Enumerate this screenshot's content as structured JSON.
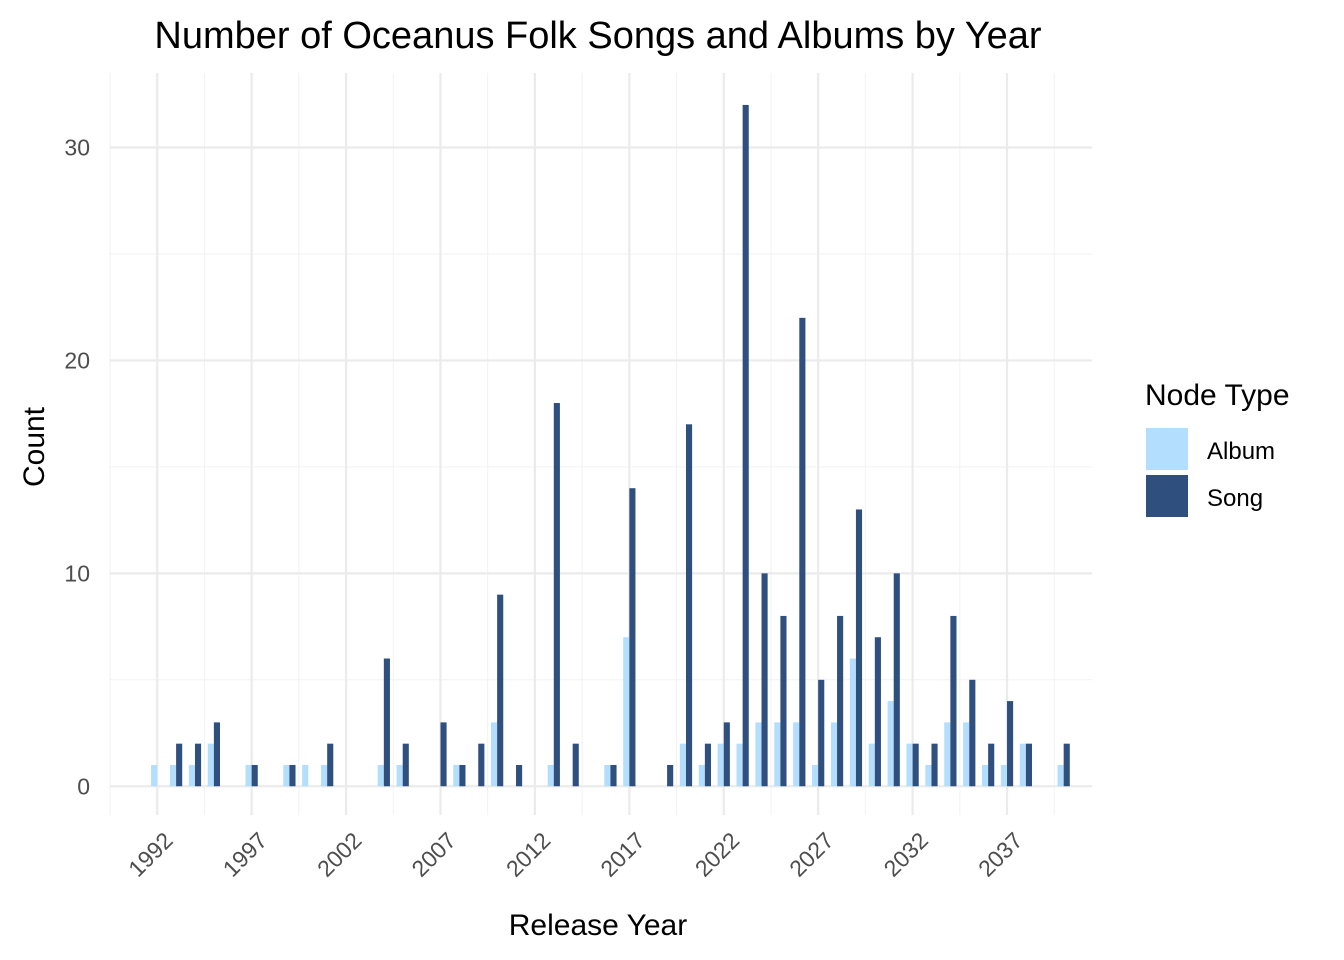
{
  "chart_data": {
    "type": "bar",
    "title": "Number of Oceanus Folk Songs and Albums by Year",
    "xlabel": "Release Year",
    "ylabel": "Count",
    "xlim": [
      1989.5,
      2041.5
    ],
    "ylim": [
      -1.35,
      33.5
    ],
    "x_ticks": [
      1992,
      1997,
      2002,
      2007,
      2012,
      2017,
      2022,
      2027,
      2032,
      2037
    ],
    "y_ticks": [
      0,
      10,
      20,
      30
    ],
    "grid": true,
    "legend": {
      "title": "Node Type",
      "position": "right"
    },
    "series": [
      {
        "name": "Album",
        "color": "#b3defd",
        "points": [
          {
            "x": 1992,
            "y": 1
          },
          {
            "x": 1993,
            "y": 1
          },
          {
            "x": 1994,
            "y": 1
          },
          {
            "x": 1995,
            "y": 2
          },
          {
            "x": 1997,
            "y": 1
          },
          {
            "x": 1999,
            "y": 1
          },
          {
            "x": 2000,
            "y": 1
          },
          {
            "x": 2001,
            "y": 1
          },
          {
            "x": 2004,
            "y": 1
          },
          {
            "x": 2005,
            "y": 1
          },
          {
            "x": 2008,
            "y": 1
          },
          {
            "x": 2010,
            "y": 3
          },
          {
            "x": 2013,
            "y": 1
          },
          {
            "x": 2016,
            "y": 1
          },
          {
            "x": 2017,
            "y": 7
          },
          {
            "x": 2020,
            "y": 2
          },
          {
            "x": 2021,
            "y": 1
          },
          {
            "x": 2022,
            "y": 2
          },
          {
            "x": 2023,
            "y": 2
          },
          {
            "x": 2024,
            "y": 3
          },
          {
            "x": 2025,
            "y": 3
          },
          {
            "x": 2026,
            "y": 3
          },
          {
            "x": 2027,
            "y": 1
          },
          {
            "x": 2028,
            "y": 3
          },
          {
            "x": 2029,
            "y": 6
          },
          {
            "x": 2030,
            "y": 2
          },
          {
            "x": 2031,
            "y": 4
          },
          {
            "x": 2032,
            "y": 2
          },
          {
            "x": 2033,
            "y": 1
          },
          {
            "x": 2034,
            "y": 3
          },
          {
            "x": 2035,
            "y": 3
          },
          {
            "x": 2036,
            "y": 1
          },
          {
            "x": 2037,
            "y": 1
          },
          {
            "x": 2038,
            "y": 2
          },
          {
            "x": 2040,
            "y": 1
          }
        ]
      },
      {
        "name": "Song",
        "color": "#2f4f7f",
        "points": [
          {
            "x": 1993,
            "y": 2
          },
          {
            "x": 1994,
            "y": 2
          },
          {
            "x": 1995,
            "y": 3
          },
          {
            "x": 1997,
            "y": 1
          },
          {
            "x": 1999,
            "y": 1
          },
          {
            "x": 2001,
            "y": 2
          },
          {
            "x": 2004,
            "y": 6
          },
          {
            "x": 2005,
            "y": 2
          },
          {
            "x": 2007,
            "y": 3
          },
          {
            "x": 2008,
            "y": 1
          },
          {
            "x": 2009,
            "y": 2
          },
          {
            "x": 2010,
            "y": 9
          },
          {
            "x": 2011,
            "y": 1
          },
          {
            "x": 2013,
            "y": 18
          },
          {
            "x": 2014,
            "y": 2
          },
          {
            "x": 2016,
            "y": 1
          },
          {
            "x": 2017,
            "y": 14
          },
          {
            "x": 2019,
            "y": 1
          },
          {
            "x": 2020,
            "y": 17
          },
          {
            "x": 2021,
            "y": 2
          },
          {
            "x": 2022,
            "y": 3
          },
          {
            "x": 2023,
            "y": 32
          },
          {
            "x": 2024,
            "y": 10
          },
          {
            "x": 2025,
            "y": 8
          },
          {
            "x": 2026,
            "y": 22
          },
          {
            "x": 2027,
            "y": 5
          },
          {
            "x": 2028,
            "y": 8
          },
          {
            "x": 2029,
            "y": 13
          },
          {
            "x": 2030,
            "y": 7
          },
          {
            "x": 2031,
            "y": 10
          },
          {
            "x": 2032,
            "y": 2
          },
          {
            "x": 2033,
            "y": 2
          },
          {
            "x": 2034,
            "y": 8
          },
          {
            "x": 2035,
            "y": 5
          },
          {
            "x": 2036,
            "y": 2
          },
          {
            "x": 2037,
            "y": 4
          },
          {
            "x": 2038,
            "y": 2
          },
          {
            "x": 2040,
            "y": 2
          }
        ]
      }
    ]
  }
}
